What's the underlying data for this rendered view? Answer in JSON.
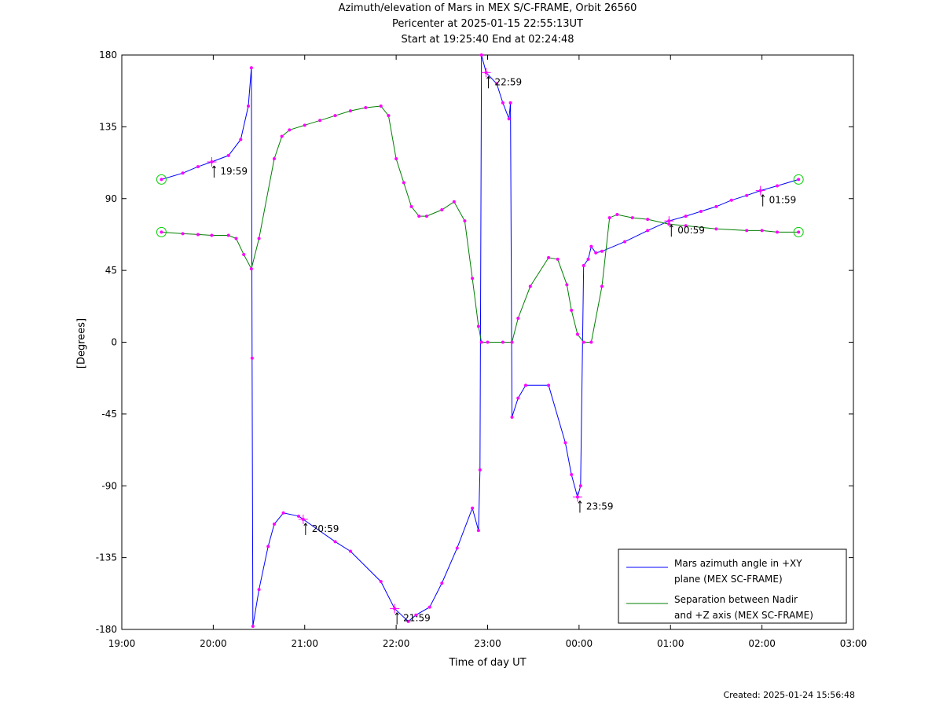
{
  "chart_data": {
    "type": "line",
    "title": "Azimuth/elevation of Mars in MEX S/C-FRAME,  Orbit 26560",
    "subtitle_1": "Pericenter at 2025-01-15 22:55:13UT",
    "subtitle_2": "Start at 19:25:40 End at 02:24:48",
    "xlabel": "Time of day UT",
    "ylabel": "[Degrees]",
    "x_ticks": [
      "19:00",
      "20:00",
      "21:00",
      "22:00",
      "23:00",
      "00:00",
      "01:00",
      "02:00",
      "03:00"
    ],
    "y_ticks": [
      "180",
      "135",
      "90",
      "45",
      "0",
      "-45",
      "-90",
      "-135",
      "-180"
    ],
    "xlim": [
      "19:00",
      "03:00"
    ],
    "ylim": [
      -180,
      180
    ],
    "grid": false,
    "legend_position": "bottom-right",
    "hour_annotations": [
      {
        "label": "19:59",
        "x": "19:59",
        "y": 113
      },
      {
        "label": "20:59",
        "x": "20:59",
        "y": -111
      },
      {
        "label": "21:59",
        "x": "21:59",
        "y": -167
      },
      {
        "label": "22:59",
        "x": "22:59",
        "y": 169
      },
      {
        "label": "23:59",
        "x": "23:59",
        "y": -97
      },
      {
        "label": "00:59",
        "x": "00:59",
        "y": 76
      },
      {
        "label": "01:59",
        "x": "01:59",
        "y": 95
      }
    ],
    "series": [
      {
        "name": "Mars azimuth angle in +XY plane (MEX SC-FRAME)",
        "legend_lines": [
          "Mars azimuth angle in +XY",
          "plane (MEX SC-FRAME)"
        ],
        "color": "#0000ff",
        "points": [
          [
            "19:26",
            102
          ],
          [
            "19:40",
            106
          ],
          [
            "19:50",
            110
          ],
          [
            "19:59",
            113
          ],
          [
            "20:10",
            117
          ],
          [
            "20:18",
            127
          ],
          [
            "20:23",
            148
          ],
          [
            "20:25",
            172
          ],
          [
            "20:25:30",
            -10
          ],
          [
            "20:26",
            -178
          ],
          [
            "20:30",
            -155
          ],
          [
            "20:36",
            -128
          ],
          [
            "20:40",
            -114
          ],
          [
            "20:46",
            -107
          ],
          [
            "20:56",
            -109
          ],
          [
            "20:59",
            -111
          ],
          [
            "21:20",
            -125
          ],
          [
            "21:30",
            -131
          ],
          [
            "21:50",
            -150
          ],
          [
            "21:59",
            -167
          ],
          [
            "22:08",
            -175
          ],
          [
            "22:13",
            -171
          ],
          [
            "22:22",
            -166
          ],
          [
            "22:30",
            -151
          ],
          [
            "22:40",
            -129
          ],
          [
            "22:50",
            -104
          ],
          [
            "22:54",
            -118
          ],
          [
            "22:55",
            -80
          ],
          [
            "22:56",
            180
          ],
          [
            "22:59",
            169
          ],
          [
            "23:06",
            162
          ],
          [
            "23:10",
            150
          ],
          [
            "23:14",
            140
          ],
          [
            "23:15",
            150
          ],
          [
            "23:16",
            -47
          ],
          [
            "23:20",
            -35
          ],
          [
            "23:25",
            -27
          ],
          [
            "23:40",
            -27
          ],
          [
            "23:51",
            -63
          ],
          [
            "23:55",
            -83
          ],
          [
            "23:59",
            -97
          ],
          [
            "00:01",
            -90
          ],
          [
            "00:03",
            48
          ],
          [
            "00:06",
            52
          ],
          [
            "00:08",
            60
          ],
          [
            "00:11",
            56
          ],
          [
            "00:15",
            57
          ],
          [
            "00:30",
            63
          ],
          [
            "00:45",
            70
          ],
          [
            "00:59",
            76
          ],
          [
            "01:10",
            79
          ],
          [
            "01:20",
            82
          ],
          [
            "01:30",
            85
          ],
          [
            "01:40",
            89
          ],
          [
            "01:50",
            92
          ],
          [
            "01:59",
            95
          ],
          [
            "02:10",
            98
          ],
          [
            "02:24",
            102
          ]
        ]
      },
      {
        "name": "Separation between Nadir and +Z axis (MEX SC-FRAME)",
        "legend_lines": [
          "Separation between Nadir",
          "and +Z axis (MEX SC-FRAME)"
        ],
        "color": "#007f00",
        "points": [
          [
            "19:26",
            69
          ],
          [
            "19:40",
            68
          ],
          [
            "19:50",
            67.5
          ],
          [
            "19:59",
            67
          ],
          [
            "20:10",
            67
          ],
          [
            "20:15",
            65
          ],
          [
            "20:20",
            55
          ],
          [
            "20:25",
            46
          ],
          [
            "20:30",
            65
          ],
          [
            "20:40",
            115
          ],
          [
            "20:45",
            129
          ],
          [
            "20:50",
            133
          ],
          [
            "21:00",
            136
          ],
          [
            "21:10",
            139
          ],
          [
            "21:20",
            142
          ],
          [
            "21:30",
            145
          ],
          [
            "21:40",
            147
          ],
          [
            "21:50",
            148
          ],
          [
            "21:55",
            142
          ],
          [
            "22:00",
            115
          ],
          [
            "22:05",
            100
          ],
          [
            "22:10",
            85
          ],
          [
            "22:15",
            79
          ],
          [
            "22:20",
            79
          ],
          [
            "22:30",
            83
          ],
          [
            "22:38",
            88
          ],
          [
            "22:45",
            76
          ],
          [
            "22:50",
            40
          ],
          [
            "22:54",
            10
          ],
          [
            "22:56",
            0
          ],
          [
            "23:00",
            0
          ],
          [
            "23:10",
            0
          ],
          [
            "23:16",
            0
          ],
          [
            "23:20",
            15
          ],
          [
            "23:28",
            35
          ],
          [
            "23:40",
            53
          ],
          [
            "23:46",
            52
          ],
          [
            "23:52",
            36
          ],
          [
            "23:55",
            20
          ],
          [
            "23:59",
            5
          ],
          [
            "00:03",
            0
          ],
          [
            "00:08",
            0
          ],
          [
            "00:15",
            35
          ],
          [
            "00:20",
            78
          ],
          [
            "00:25",
            80
          ],
          [
            "00:35",
            78
          ],
          [
            "00:45",
            77
          ],
          [
            "00:59",
            74
          ],
          [
            "01:10",
            73
          ],
          [
            "01:30",
            71
          ],
          [
            "01:50",
            70
          ],
          [
            "02:00",
            70
          ],
          [
            "02:10",
            69
          ],
          [
            "02:24",
            69
          ]
        ]
      }
    ],
    "marker_color": "#ff00ff",
    "start_end_marker_color": "#00d000"
  },
  "footer": "Created: 2025-01-24 15:56:48"
}
